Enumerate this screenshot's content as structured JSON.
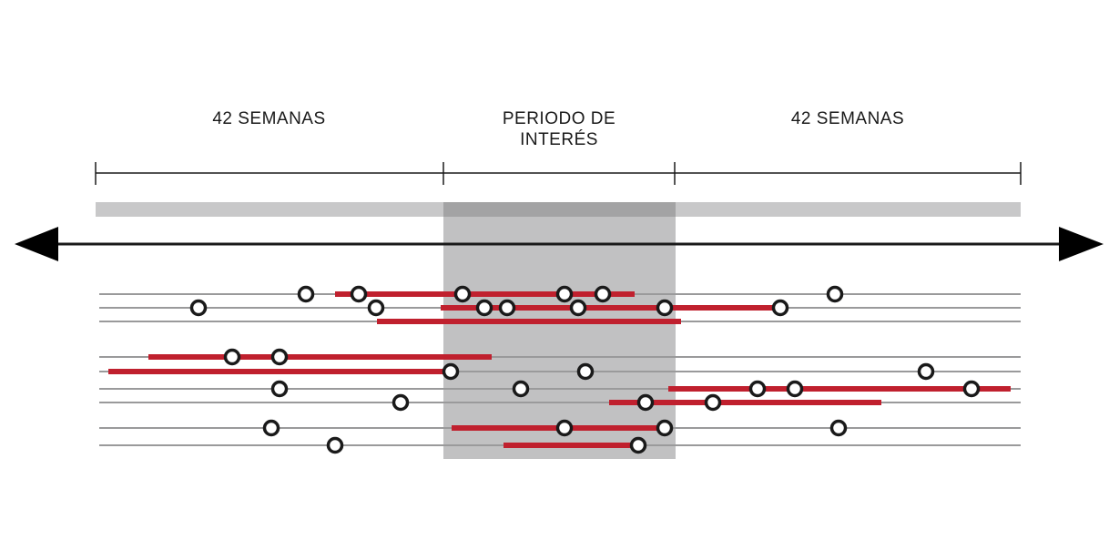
{
  "labels": {
    "left": "42 SEMANAS",
    "middle_line1": "PERIODO DE",
    "middle_line2": "INTERÉS",
    "right": "42 SEMANAS"
  },
  "colors": {
    "exposure_bar": "#c0202e",
    "interest_shade": "#c1c1c2",
    "interest_shade_top": "#a3a3a4",
    "timeline_band": "#c8c8c9",
    "row_line": "#9a9a9b",
    "axis": "#1a1a1a",
    "marker_stroke": "#1a1a1a",
    "marker_fill": "#ffffff"
  },
  "icons": {
    "left_arrow": "arrow-left-icon",
    "right_arrow": "arrow-right-icon",
    "event_marker": "circle-marker-icon"
  },
  "timeline": {
    "segments": [
      "before-window",
      "interest-window",
      "after-window"
    ],
    "weeks_before": 42,
    "weeks_after": 42
  }
}
